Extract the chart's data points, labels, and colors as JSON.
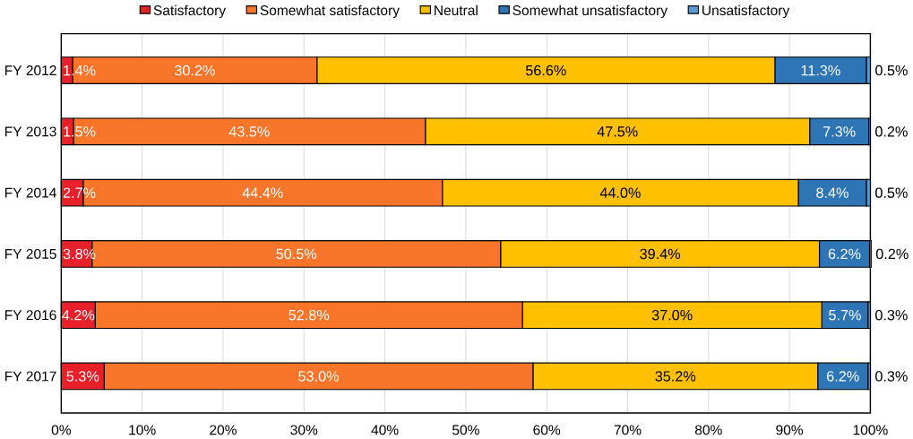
{
  "chart_data": {
    "type": "bar",
    "orientation": "horizontal",
    "stacked": true,
    "grid": "x",
    "legend": "top",
    "categories": [
      "FY 2012",
      "FY 2013",
      "FY 2014",
      "FY 2015",
      "FY 2016",
      "FY 2017"
    ],
    "xlim": [
      0,
      100
    ],
    "xticks": [
      {
        "value": 0,
        "label": "0%"
      },
      {
        "value": 10,
        "label": "10%"
      },
      {
        "value": 20,
        "label": "20%"
      },
      {
        "value": 30,
        "label": "30%"
      },
      {
        "value": 40,
        "label": "40%"
      },
      {
        "value": 50,
        "label": "50%"
      },
      {
        "value": 60,
        "label": "60%"
      },
      {
        "value": 70,
        "label": "70%"
      },
      {
        "value": 80,
        "label": "80%"
      },
      {
        "value": 90,
        "label": "90%"
      },
      {
        "value": 100,
        "label": "100%"
      }
    ],
    "series": [
      {
        "name": "Satisfactory",
        "color": "#e8202a",
        "values": [
          1.4,
          1.5,
          2.7,
          3.8,
          4.2,
          5.3
        ],
        "value_labels": [
          "1.4%",
          "1.5%",
          "2.7%",
          "3.8%",
          "4.2%",
          "5.3%"
        ]
      },
      {
        "name": "Somewhat satisfactory",
        "color": "#f8752a",
        "values": [
          30.2,
          43.5,
          44.4,
          50.5,
          52.8,
          53.0
        ],
        "value_labels": [
          "30.2%",
          "43.5%",
          "44.4%",
          "50.5%",
          "52.8%",
          "53.0%"
        ]
      },
      {
        "name": "Neutral",
        "color": "#ffc000",
        "values": [
          56.6,
          47.5,
          44.0,
          39.4,
          37.0,
          35.2
        ],
        "value_labels": [
          "56.6%",
          "47.5%",
          "44.0%",
          "39.4%",
          "37.0%",
          "35.2%"
        ]
      },
      {
        "name": "Somewhat unsatisfactory",
        "color": "#2e75b6",
        "values": [
          11.3,
          7.3,
          8.4,
          6.2,
          5.7,
          6.2
        ],
        "value_labels": [
          "11.3%",
          "7.3%",
          "8.4%",
          "6.2%",
          "5.7%",
          "6.2%"
        ]
      },
      {
        "name": "Unsatisfactory",
        "color": "#5b9bd5",
        "values": [
          0.5,
          0.2,
          0.5,
          0.2,
          0.3,
          0.3
        ],
        "value_labels": [
          "0.5%",
          "0.2%",
          "0.5%",
          "0.2%",
          "0.3%",
          "0.3%"
        ]
      }
    ]
  }
}
